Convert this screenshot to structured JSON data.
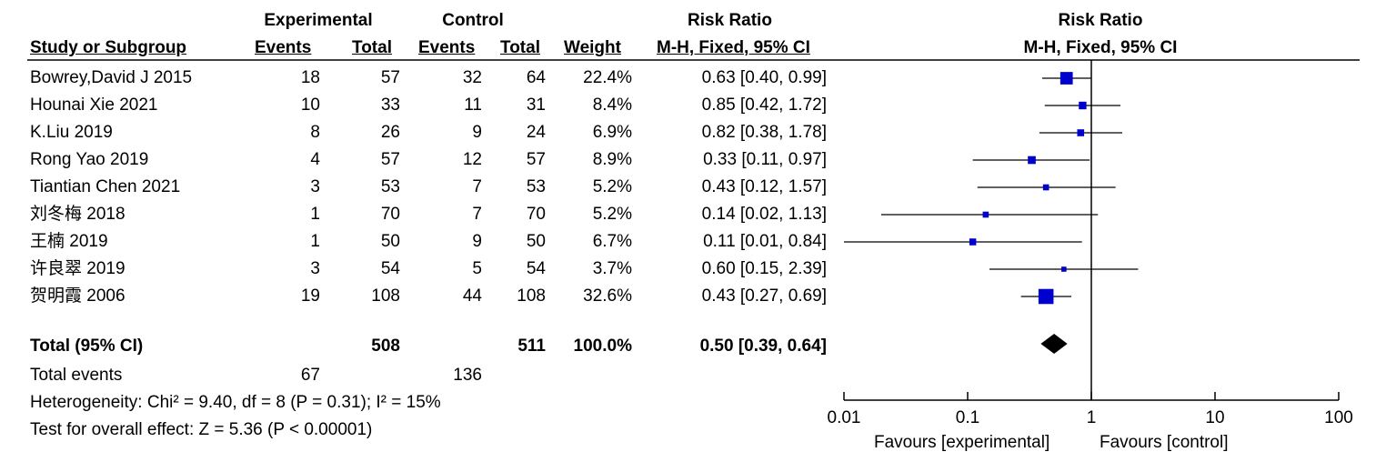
{
  "headers": {
    "study": "Study or Subgroup",
    "experimental": "Experimental",
    "control": "Control",
    "events": "Events",
    "total": "Total",
    "weight": "Weight",
    "rr": "Risk Ratio",
    "rr_method": "M-H, Fixed, 95% CI"
  },
  "studies": [
    {
      "name": "Bowrey,David J 2015",
      "e_events": "18",
      "e_total": "57",
      "c_events": "32",
      "c_total": "64",
      "weight": "22.4%",
      "ci_text": "0.63 [0.40, 0.99]"
    },
    {
      "name": "Hounai Xie 2021",
      "e_events": "10",
      "e_total": "33",
      "c_events": "11",
      "c_total": "31",
      "weight": "8.4%",
      "ci_text": "0.85 [0.42, 1.72]"
    },
    {
      "name": "K.Liu 2019",
      "e_events": "8",
      "e_total": "26",
      "c_events": "9",
      "c_total": "24",
      "weight": "6.9%",
      "ci_text": "0.82 [0.38, 1.78]"
    },
    {
      "name": "Rong Yao 2019",
      "e_events": "4",
      "e_total": "57",
      "c_events": "12",
      "c_total": "57",
      "weight": "8.9%",
      "ci_text": "0.33 [0.11, 0.97]"
    },
    {
      "name": "Tiantian Chen 2021",
      "e_events": "3",
      "e_total": "53",
      "c_events": "7",
      "c_total": "53",
      "weight": "5.2%",
      "ci_text": "0.43 [0.12, 1.57]"
    },
    {
      "name": "刘冬梅 2018",
      "e_events": "1",
      "e_total": "70",
      "c_events": "7",
      "c_total": "70",
      "weight": "5.2%",
      "ci_text": "0.14 [0.02, 1.13]"
    },
    {
      "name": "王楠 2019",
      "e_events": "1",
      "e_total": "50",
      "c_events": "9",
      "c_total": "50",
      "weight": "6.7%",
      "ci_text": "0.11 [0.01, 0.84]"
    },
    {
      "name": "许良翠 2019",
      "e_events": "3",
      "e_total": "54",
      "c_events": "5",
      "c_total": "54",
      "weight": "3.7%",
      "ci_text": "0.60 [0.15, 2.39]"
    },
    {
      "name": "贺明霞 2006",
      "e_events": "19",
      "e_total": "108",
      "c_events": "44",
      "c_total": "108",
      "weight": "32.6%",
      "ci_text": "0.43 [0.27, 0.69]"
    }
  ],
  "total": {
    "label": "Total (95% CI)",
    "e_total": "508",
    "c_total": "511",
    "weight": "100.0%",
    "ci_text": "0.50 [0.39, 0.64]"
  },
  "total_events": {
    "label": "Total events",
    "e_events": "67",
    "c_events": "136"
  },
  "heterogeneity": "Heterogeneity: Chi² = 9.40, df = 8 (P = 0.31); I² = 15%",
  "overall_effect": "Test for overall effect: Z = 5.36 (P < 0.00001)",
  "axis": {
    "favours_left": "Favours [experimental]",
    "favours_right": "Favours [control]"
  },
  "colors": {
    "marker": "#0000cc",
    "diamond": "#000000",
    "line": "#000000"
  },
  "chart_data": {
    "type": "forest",
    "title": "Risk Ratio",
    "subtitle": "M-H, Fixed, 95% CI",
    "x_scale": "log",
    "xlim": [
      0.01,
      100
    ],
    "xticks": [
      0.01,
      0.1,
      1,
      10,
      100
    ],
    "xtick_labels": [
      "0.01",
      "0.1",
      "1",
      "10",
      "100"
    ],
    "null_line": 1,
    "studies": [
      {
        "name": "Bowrey,David J 2015",
        "rr": 0.63,
        "lower": 0.4,
        "upper": 0.99,
        "weight": 22.4
      },
      {
        "name": "Hounai Xie 2021",
        "rr": 0.85,
        "lower": 0.42,
        "upper": 1.72,
        "weight": 8.4
      },
      {
        "name": "K.Liu 2019",
        "rr": 0.82,
        "lower": 0.38,
        "upper": 1.78,
        "weight": 6.9
      },
      {
        "name": "Rong Yao 2019",
        "rr": 0.33,
        "lower": 0.11,
        "upper": 0.97,
        "weight": 8.9
      },
      {
        "name": "Tiantian Chen 2021",
        "rr": 0.43,
        "lower": 0.12,
        "upper": 1.57,
        "weight": 5.2
      },
      {
        "name": "刘冬梅 2018",
        "rr": 0.14,
        "lower": 0.02,
        "upper": 1.13,
        "weight": 5.2
      },
      {
        "name": "王楠 2019",
        "rr": 0.11,
        "lower": 0.01,
        "upper": 0.84,
        "weight": 6.7
      },
      {
        "name": "许良翠 2019",
        "rr": 0.6,
        "lower": 0.15,
        "upper": 2.39,
        "weight": 3.7
      },
      {
        "name": "贺明霞 2006",
        "rr": 0.43,
        "lower": 0.27,
        "upper": 0.69,
        "weight": 32.6
      }
    ],
    "pooled": {
      "rr": 0.5,
      "lower": 0.39,
      "upper": 0.64
    }
  }
}
